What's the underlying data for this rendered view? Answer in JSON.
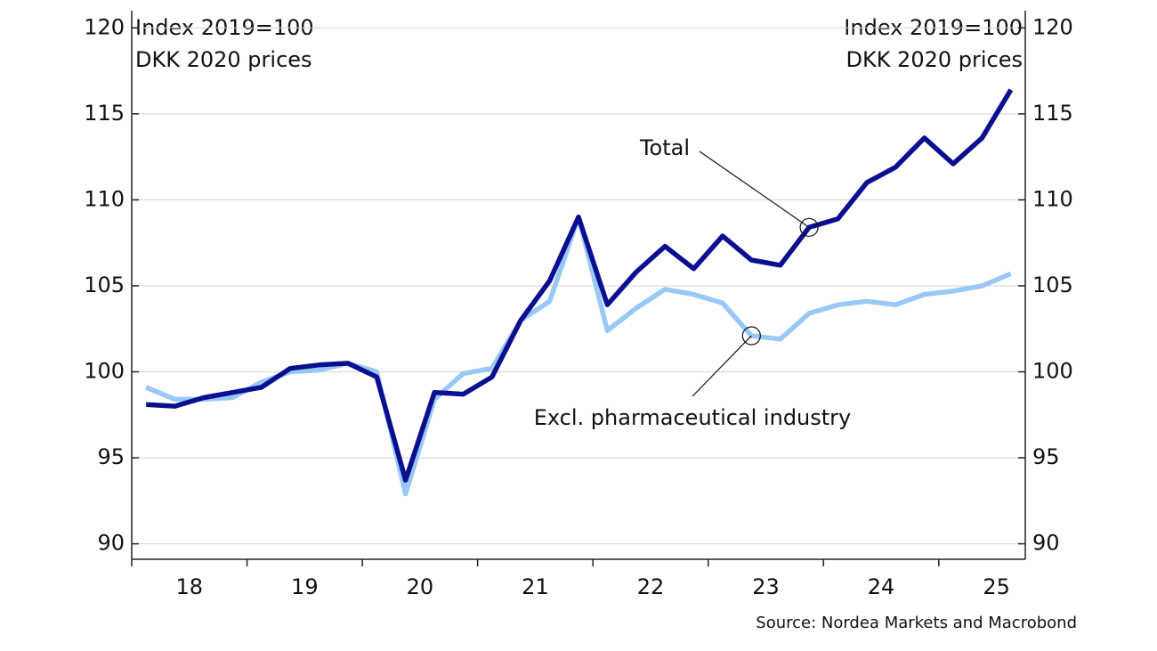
{
  "chart_data": {
    "type": "line",
    "ylabel": [
      "Index 2019=100",
      "DKK 2020 prices"
    ],
    "y2label": [
      "Index 2019=100",
      "DKK 2020 prices"
    ],
    "source": "Source: Nordea Markets and Macrobond",
    "x": [
      2018.125,
      2018.375,
      2018.625,
      2018.875,
      2019.125,
      2019.375,
      2019.625,
      2019.875,
      2020.125,
      2020.375,
      2020.625,
      2020.875,
      2021.125,
      2021.375,
      2021.625,
      2021.875,
      2022.125,
      2022.375,
      2022.625,
      2022.875,
      2023.125,
      2023.375,
      2023.625,
      2023.875,
      2024.125,
      2024.375,
      2024.625,
      2024.875,
      2025.125,
      2025.375,
      2025.625
    ],
    "xlim": [
      2018,
      2025.75
    ],
    "xticks": [
      2018,
      2019,
      2020,
      2021,
      2022,
      2023,
      2024,
      2025
    ],
    "xlabels": [
      {
        "value": 2018.5,
        "label": "18"
      },
      {
        "value": 2019.5,
        "label": "19"
      },
      {
        "value": 2020.5,
        "label": "20"
      },
      {
        "value": 2021.5,
        "label": "21"
      },
      {
        "value": 2022.5,
        "label": "22"
      },
      {
        "value": 2023.5,
        "label": "23"
      },
      {
        "value": 2024.5,
        "label": "24"
      },
      {
        "value": 2025.5,
        "label": "25"
      }
    ],
    "ylim": [
      89.1,
      121.0
    ],
    "yticks": [
      90,
      95,
      100,
      105,
      110,
      115,
      120
    ],
    "y2lim": [
      89.1,
      121.0
    ],
    "y2ticks": [
      90,
      95,
      100,
      105,
      110,
      115,
      120
    ],
    "grid": true,
    "series": [
      {
        "name": "Total",
        "color": "#0a0f8f",
        "values": [
          98.1,
          98.0,
          98.5,
          98.8,
          99.1,
          100.2,
          100.4,
          100.5,
          99.7,
          93.7,
          98.8,
          98.7,
          99.7,
          103.0,
          105.3,
          109.0,
          103.9,
          105.8,
          107.3,
          106.0,
          107.9,
          106.5,
          106.2,
          108.4,
          108.9,
          111.0,
          111.9,
          113.6,
          112.1,
          113.6,
          116.4
        ]
      },
      {
        "name": "Excl. pharmaceutical industry",
        "color": "#98c8f6",
        "values": [
          99.1,
          98.4,
          98.4,
          98.5,
          99.4,
          100.0,
          100.1,
          100.5,
          100.0,
          92.9,
          98.4,
          99.9,
          100.2,
          103.0,
          104.1,
          109.0,
          102.4,
          103.7,
          104.8,
          104.5,
          104.0,
          102.1,
          101.9,
          103.4,
          103.9,
          104.1,
          103.9,
          104.5,
          104.7,
          105.0,
          105.7
        ]
      }
    ]
  }
}
